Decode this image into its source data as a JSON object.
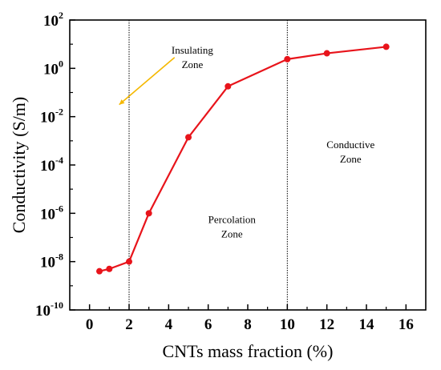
{
  "chart_data": {
    "type": "line",
    "title": "",
    "xlabel": "CNTs mass fraction (%)",
    "ylabel": "Conductivity (S/m)",
    "xlim": [
      -1,
      17
    ],
    "ylim_log10": [
      -10,
      2
    ],
    "yscale": "log",
    "grid": false,
    "legend": "none",
    "x_ticks": [
      0,
      2,
      4,
      6,
      8,
      10,
      12,
      14,
      16
    ],
    "y_ticks": [
      {
        "base": "10",
        "exp": "2",
        "log": 2
      },
      {
        "base": "10",
        "exp": "0",
        "log": 0
      },
      {
        "base": "10",
        "exp": "-2",
        "log": -2
      },
      {
        "base": "10",
        "exp": "-4",
        "log": -4
      },
      {
        "base": "10",
        "exp": "-6",
        "log": -6
      },
      {
        "base": "10",
        "exp": "-8",
        "log": -8
      },
      {
        "base": "10",
        "exp": "-10",
        "log": -10
      }
    ],
    "series": [
      {
        "color": "#e8141b",
        "x": [
          0.5,
          1,
          2,
          3,
          5,
          7,
          10,
          12,
          15
        ],
        "y": [
          4e-09,
          5e-09,
          1e-08,
          1e-06,
          0.0014,
          0.18,
          2.4,
          4.2,
          7.8
        ]
      }
    ],
    "dividers_x": [
      2,
      10
    ],
    "zones": [
      {
        "lines": [
          "Insulating",
          "Zone"
        ],
        "x": 5.2,
        "ylog": 0.6
      },
      {
        "lines": [
          "Percolation",
          "Zone"
        ],
        "x": 7.2,
        "ylog": -6.4
      },
      {
        "lines": [
          "Conductive",
          "Zone"
        ],
        "x": 13.2,
        "ylog": -3.3
      }
    ],
    "arrow": {
      "color": "#f5b800",
      "from": [
        4.3,
        0.45
      ],
      "to": [
        1.5,
        -1.5
      ]
    }
  }
}
